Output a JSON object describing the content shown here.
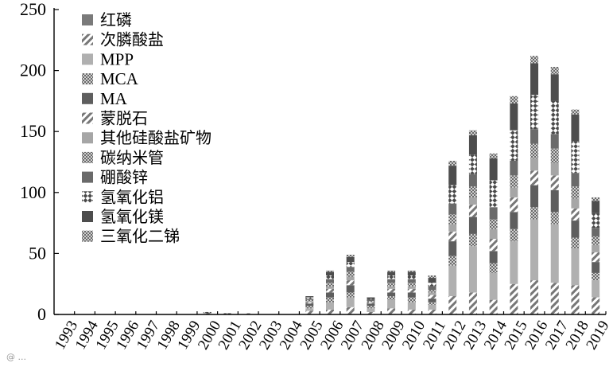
{
  "chart_data": {
    "type": "bar",
    "stacked": true,
    "title": "",
    "xlabel": "",
    "ylabel": "",
    "ylim": [
      0,
      250
    ],
    "yticks": [
      0,
      50,
      100,
      150,
      200,
      250
    ],
    "grid": false,
    "legend_position": "top-left",
    "categories": [
      "1993",
      "1994",
      "1995",
      "1996",
      "1997",
      "1998",
      "1999",
      "2000",
      "2001",
      "2002",
      "2003",
      "2004",
      "2005",
      "2006",
      "2007",
      "2008",
      "2009",
      "2010",
      "2011",
      "2012",
      "2013",
      "2014",
      "2015",
      "2016",
      "2017",
      "2018",
      "2019"
    ],
    "series": [
      {
        "name": "红磷",
        "color": "#7a7a7a",
        "pattern": "solid",
        "values": [
          0,
          0,
          0,
          0,
          0,
          0,
          0,
          0,
          0,
          0,
          0,
          0,
          0,
          0,
          0,
          0,
          0,
          0,
          0,
          0,
          0,
          0,
          0,
          0,
          0,
          0,
          0
        ]
      },
      {
        "name": "次膦酸盐",
        "color": "#8c8c8c",
        "pattern": "hatch",
        "values": [
          0,
          0,
          0,
          0,
          0,
          0,
          0,
          1,
          0,
          1,
          0,
          0,
          3,
          4,
          6,
          2,
          5,
          4,
          4,
          15,
          18,
          12,
          25,
          28,
          26,
          24,
          14
        ]
      },
      {
        "name": "MPP",
        "color": "#b0b0b0",
        "pattern": "solid",
        "values": [
          0,
          0,
          0,
          0,
          0,
          0,
          0,
          0,
          0,
          0,
          0,
          0,
          2,
          6,
          8,
          3,
          7,
          6,
          4,
          25,
          38,
          22,
          35,
          50,
          48,
          30,
          14
        ]
      },
      {
        "name": "MCA",
        "color": "#7d7d7d",
        "pattern": "dots",
        "values": [
          0,
          0,
          0,
          0,
          0,
          0,
          0,
          0,
          0,
          0,
          0,
          0,
          2,
          4,
          4,
          2,
          3,
          4,
          2,
          8,
          10,
          8,
          10,
          10,
          10,
          9,
          6
        ]
      },
      {
        "name": "MA",
        "color": "#5e5e5e",
        "pattern": "solid",
        "values": [
          0,
          0,
          0,
          0,
          0,
          0,
          0,
          0,
          0,
          0,
          0,
          0,
          2,
          4,
          6,
          2,
          3,
          4,
          3,
          12,
          14,
          10,
          14,
          18,
          18,
          14,
          9
        ]
      },
      {
        "name": "蒙脱石",
        "color": "#969696",
        "pattern": "hatch",
        "values": [
          0,
          0,
          0,
          0,
          0,
          0,
          0,
          0,
          0,
          0,
          0,
          0,
          1,
          3,
          4,
          1,
          3,
          3,
          3,
          8,
          10,
          10,
          12,
          12,
          12,
          10,
          8
        ]
      },
      {
        "name": "其他硅酸盐矿物",
        "color": "#a6a6a6",
        "pattern": "solid",
        "values": [
          0,
          0,
          0,
          0,
          0,
          0,
          0,
          0,
          0,
          0,
          0,
          0,
          1,
          2,
          3,
          0,
          2,
          2,
          2,
          6,
          6,
          8,
          8,
          10,
          10,
          8,
          6
        ]
      },
      {
        "name": "碳纳米管",
        "color": "#858585",
        "pattern": "dots",
        "values": [
          0,
          0,
          0,
          0,
          0,
          0,
          0,
          0,
          0,
          0,
          0,
          0,
          1,
          3,
          4,
          1,
          3,
          3,
          2,
          8,
          9,
          8,
          10,
          12,
          12,
          10,
          7
        ]
      },
      {
        "name": "硼酸锌",
        "color": "#6a6a6a",
        "pattern": "solid",
        "values": [
          0,
          0,
          0,
          0,
          0,
          0,
          0,
          0,
          0,
          0,
          0,
          0,
          1,
          3,
          4,
          1,
          3,
          3,
          3,
          9,
          10,
          10,
          12,
          12,
          12,
          11,
          7
        ]
      },
      {
        "name": "氢氧化铝",
        "color": "#737373",
        "pattern": "checker",
        "values": [
          0,
          0,
          0,
          0,
          0,
          0,
          0,
          1,
          1,
          0,
          0,
          0,
          1,
          3,
          4,
          1,
          3,
          3,
          3,
          15,
          16,
          22,
          25,
          28,
          27,
          26,
          12
        ]
      },
      {
        "name": "氢氧化镁",
        "color": "#4d4d4d",
        "pattern": "solid",
        "values": [
          0,
          0,
          0,
          0,
          0,
          0,
          0,
          0,
          0,
          0,
          0,
          0,
          1,
          3,
          4,
          1,
          3,
          3,
          4,
          16,
          16,
          18,
          22,
          26,
          22,
          22,
          10
        ]
      },
      {
        "name": "三氧化二锑",
        "color": "#9c9c9c",
        "pattern": "dots",
        "values": [
          0,
          0,
          0,
          0,
          0,
          0,
          0,
          0,
          0,
          0,
          0,
          0,
          0,
          1,
          2,
          0,
          1,
          1,
          2,
          4,
          4,
          4,
          6,
          6,
          6,
          4,
          3
        ]
      }
    ]
  },
  "watermark_text": "@ ..."
}
